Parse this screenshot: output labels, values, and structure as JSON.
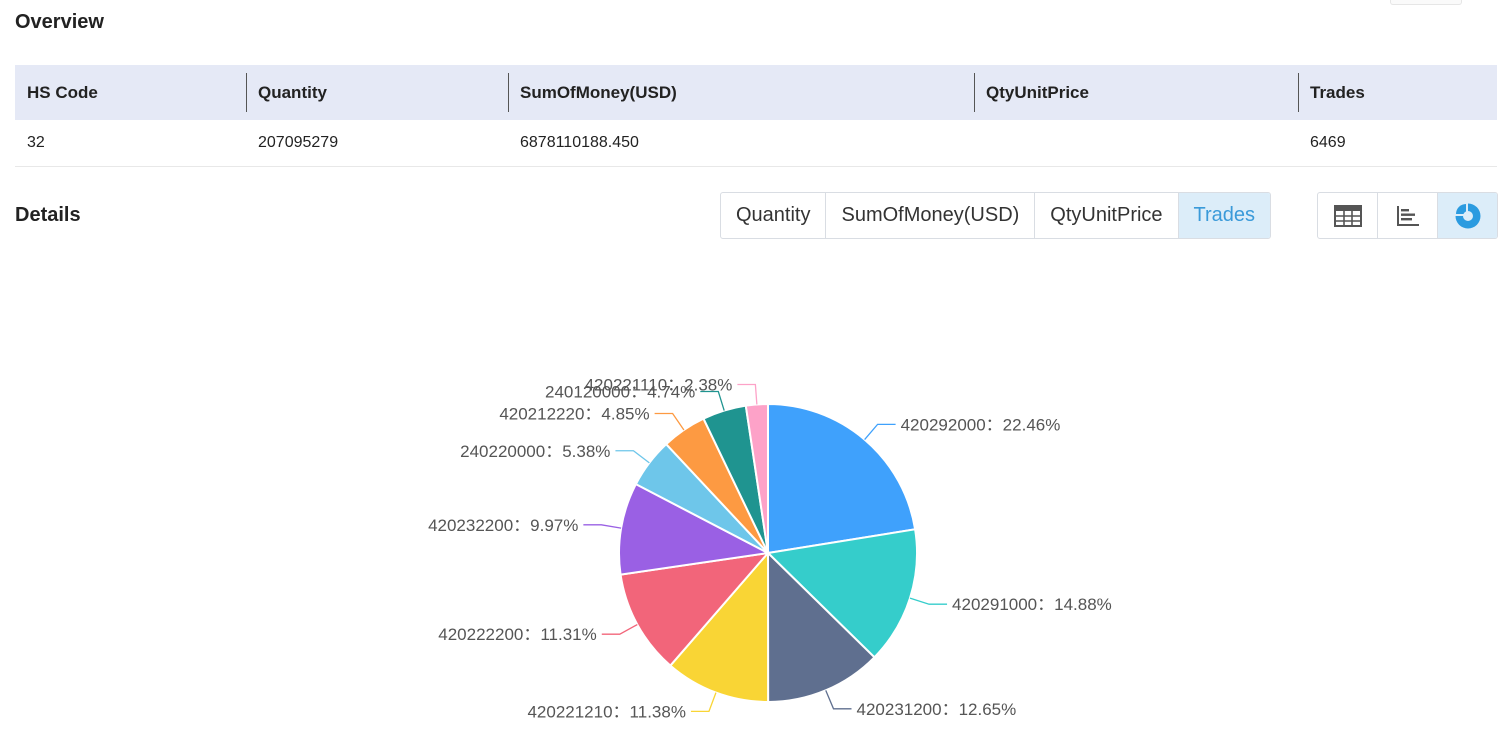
{
  "overview": {
    "title": "Overview",
    "headers": [
      "HS Code",
      "Quantity",
      "SumOfMoney(USD)",
      "QtyUnitPrice",
      "Trades"
    ],
    "row": [
      "32",
      "207095279",
      "6878110188.450",
      "",
      "6469"
    ]
  },
  "details": {
    "title": "Details",
    "metric_tabs": [
      "Quantity",
      "SumOfMoney(USD)",
      "QtyUnitPrice",
      "Trades"
    ],
    "active_tab": "Trades",
    "view_buttons": [
      {
        "icon": "table-icon",
        "active": false
      },
      {
        "icon": "bar-chart-icon",
        "active": false
      },
      {
        "icon": "pie-chart-icon",
        "active": true
      }
    ]
  },
  "chart_data": {
    "type": "pie",
    "title": "",
    "separator": "：",
    "slices": [
      {
        "label": "420292000",
        "percent": "22.46%",
        "value": 22.46,
        "color": "#3fa1fc"
      },
      {
        "label": "420291000",
        "percent": "14.88%",
        "value": 14.88,
        "color": "#35cdcb"
      },
      {
        "label": "420231200",
        "percent": "12.65%",
        "value": 12.65,
        "color": "#5f6f8f"
      },
      {
        "label": "420221210",
        "percent": "11.38%",
        "value": 11.38,
        "color": "#f9d535"
      },
      {
        "label": "420222200",
        "percent": "11.31%",
        "value": 11.31,
        "color": "#f2657a"
      },
      {
        "label": "420232200",
        "percent": "9.97%",
        "value": 9.97,
        "color": "#9a60e4"
      },
      {
        "label": "240220000",
        "percent": "5.38%",
        "value": 5.38,
        "color": "#6ec6ea"
      },
      {
        "label": "420212220",
        "percent": "4.85%",
        "value": 4.85,
        "color": "#fd9a42"
      },
      {
        "label": "240120000",
        "percent": "4.74%",
        "value": 4.74,
        "color": "#1f9490"
      },
      {
        "label": "420221110",
        "percent": "2.38%",
        "value": 2.38,
        "color": "#fda2c8"
      }
    ]
  }
}
